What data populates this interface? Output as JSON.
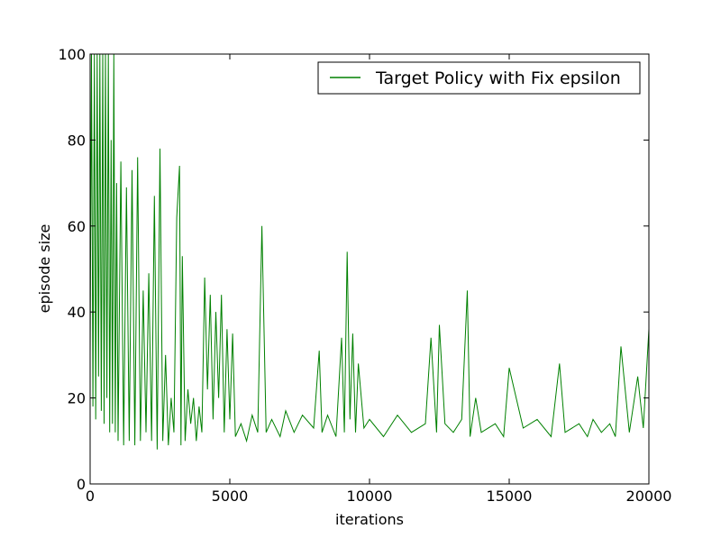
{
  "chart_data": {
    "type": "line",
    "title": "",
    "xlabel": "iterations",
    "ylabel": "episode size",
    "xlim": [
      0,
      20000
    ],
    "ylim": [
      0,
      100
    ],
    "x_ticks": [
      0,
      5000,
      10000,
      15000,
      20000
    ],
    "x_tick_labels": [
      "0",
      "5000",
      "10000",
      "15000",
      "20000"
    ],
    "y_ticks": [
      0,
      20,
      40,
      60,
      80,
      100
    ],
    "y_tick_labels": [
      "0",
      "20",
      "40",
      "60",
      "80",
      "100"
    ],
    "grid": false,
    "legend": {
      "placement": "top-right",
      "entries": [
        "Target Policy with Fix epsilon"
      ]
    },
    "series": [
      {
        "name": "Target Policy with Fix epsilon",
        "color": "#008000",
        "x": [
          0,
          50,
          100,
          150,
          200,
          250,
          300,
          350,
          400,
          450,
          500,
          550,
          600,
          650,
          700,
          750,
          800,
          850,
          900,
          950,
          1000,
          1100,
          1200,
          1300,
          1400,
          1500,
          1600,
          1700,
          1800,
          1900,
          2000,
          2100,
          2200,
          2300,
          2400,
          2500,
          2600,
          2700,
          2800,
          2900,
          3000,
          3100,
          3200,
          3250,
          3300,
          3400,
          3500,
          3600,
          3700,
          3800,
          3900,
          4000,
          4100,
          4200,
          4300,
          4400,
          4500,
          4600,
          4700,
          4800,
          4900,
          5000,
          5100,
          5200,
          5400,
          5600,
          5800,
          6000,
          6150,
          6300,
          6500,
          6800,
          7000,
          7300,
          7600,
          8000,
          8200,
          8300,
          8500,
          8800,
          9000,
          9100,
          9200,
          9300,
          9400,
          9500,
          9600,
          9800,
          10000,
          10500,
          11000,
          11500,
          12000,
          12200,
          12400,
          12500,
          12700,
          13000,
          13300,
          13500,
          13600,
          13800,
          14000,
          14500,
          14800,
          15000,
          15500,
          16000,
          16500,
          16800,
          17000,
          17500,
          17800,
          18000,
          18300,
          18600,
          18800,
          19000,
          19300,
          19600,
          19800,
          20000
        ],
        "y": [
          30,
          100,
          18,
          100,
          15,
          100,
          25,
          100,
          17,
          100,
          14,
          100,
          20,
          100,
          12,
          80,
          14,
          100,
          12,
          70,
          10,
          75,
          9,
          69,
          10,
          73,
          9,
          76,
          10,
          45,
          12,
          49,
          10,
          67,
          8,
          78,
          10,
          30,
          9,
          20,
          12,
          62,
          74,
          9,
          53,
          10,
          22,
          14,
          20,
          10,
          18,
          12,
          48,
          22,
          44,
          15,
          40,
          20,
          44,
          12,
          36,
          15,
          35,
          11,
          14,
          10,
          16,
          12,
          60,
          12,
          15,
          11,
          17,
          12,
          16,
          13,
          31,
          12,
          16,
          11,
          34,
          12,
          54,
          15,
          35,
          12,
          28,
          13,
          15,
          11,
          16,
          12,
          14,
          34,
          12,
          37,
          14,
          12,
          15,
          45,
          11,
          20,
          12,
          14,
          11,
          27,
          13,
          15,
          11,
          28,
          12,
          14,
          11,
          15,
          12,
          14,
          11,
          32,
          12,
          25,
          13,
          36
        ]
      }
    ]
  }
}
